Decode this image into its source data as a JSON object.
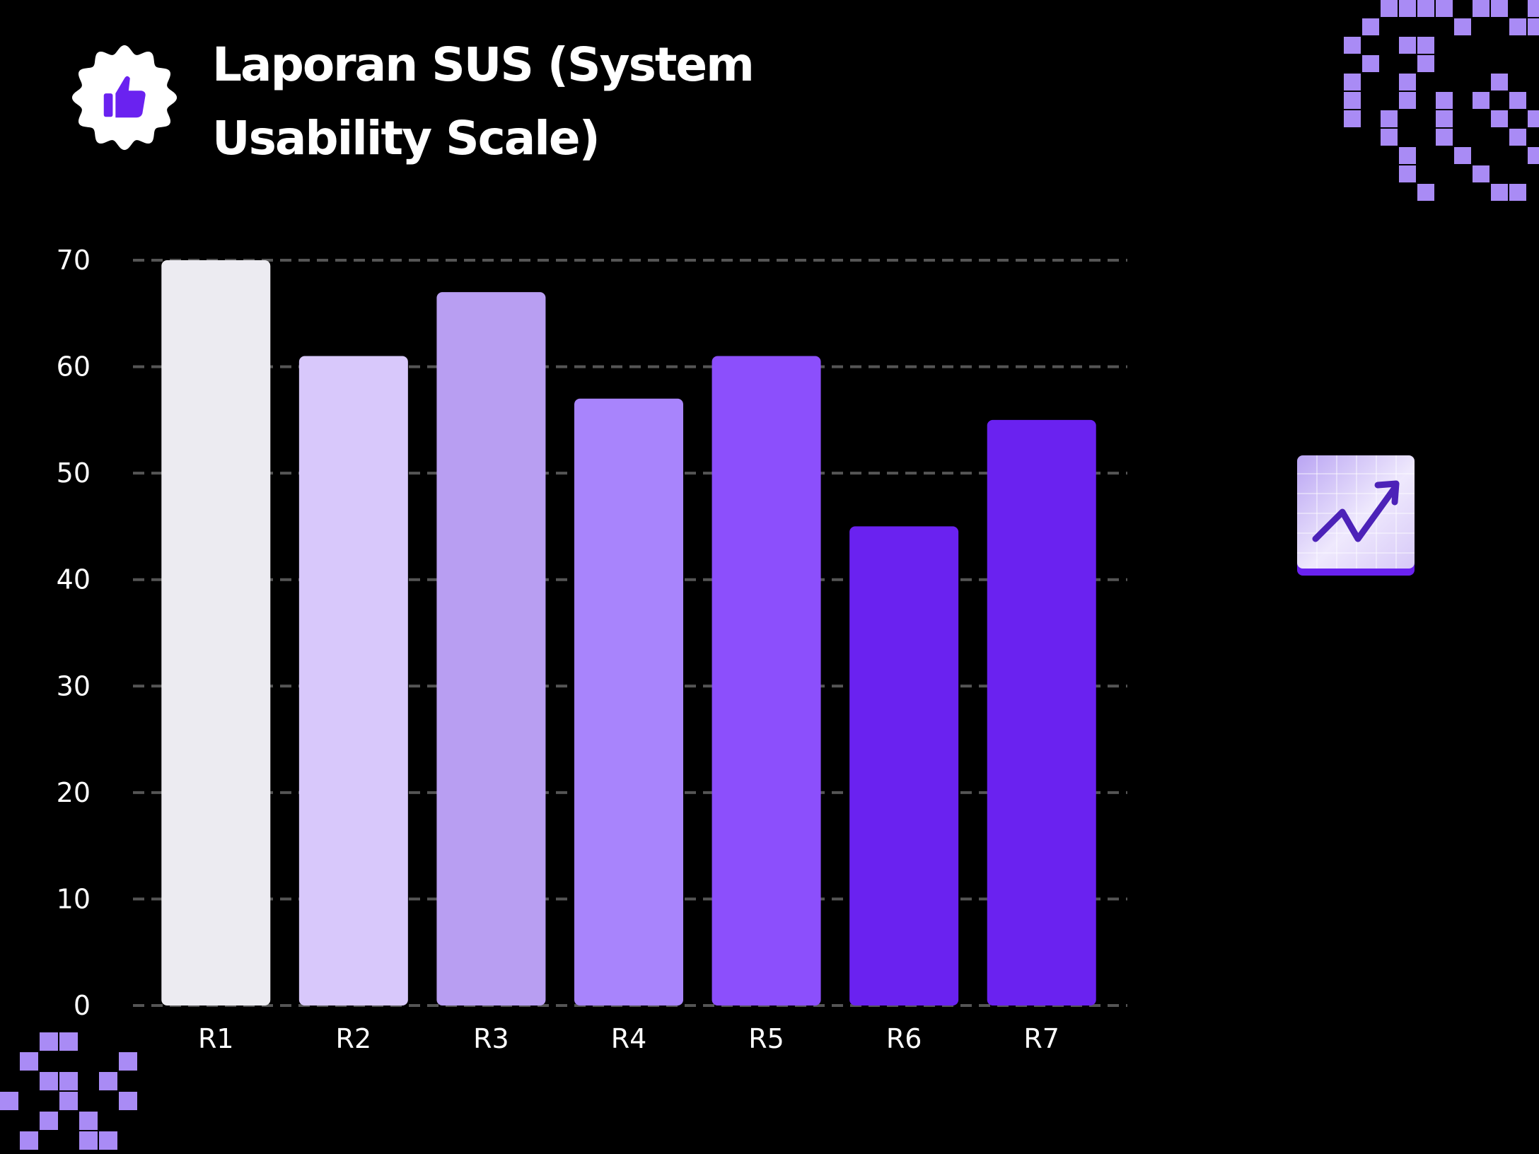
{
  "title": {
    "line1": "Laporan SUS (System",
    "line2": "Usability Scale)"
  },
  "icons": {
    "badge": "thumbs-up-badge-icon",
    "trend": "trending-up-chart-icon",
    "decoration": "pixel-grid-decoration"
  },
  "colors": {
    "background": "#000000",
    "accent": "#6a22f0",
    "pixel": "#a98bf5",
    "grid": "#555555"
  },
  "chart_data": {
    "type": "bar",
    "categories": [
      "R1",
      "R2",
      "R3",
      "R4",
      "R5",
      "R6",
      "R7"
    ],
    "values": [
      70,
      61,
      67,
      57,
      61,
      45,
      55
    ],
    "colors": [
      "#ecebf1",
      "#d8c8fb",
      "#b89ef2",
      "#a884fc",
      "#8c4ffc",
      "#6a22f0",
      "#6a22f0"
    ],
    "yticks": [
      0,
      10,
      20,
      30,
      40,
      50,
      60,
      70
    ],
    "ylim": [
      0,
      70
    ],
    "grid": true,
    "legend": "none"
  }
}
